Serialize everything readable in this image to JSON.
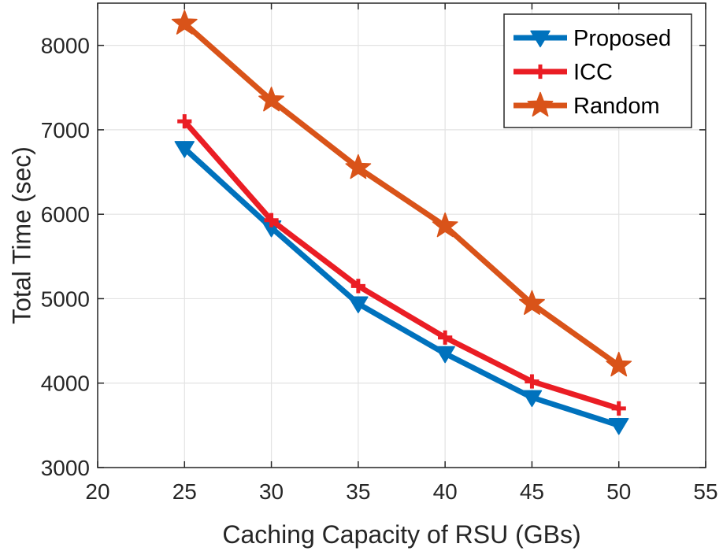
{
  "chart_data": {
    "type": "line",
    "xlabel": "Caching Capacity of RSU (GBs)",
    "ylabel": "Total Time (sec)",
    "xlim": [
      20,
      55
    ],
    "ylim": [
      3000,
      8500
    ],
    "xticks": [
      20,
      25,
      30,
      35,
      40,
      45,
      50,
      55
    ],
    "yticks": [
      3000,
      4000,
      5000,
      6000,
      7000,
      8000
    ],
    "grid": true,
    "legend_position": "top-right",
    "x": [
      25,
      30,
      35,
      40,
      45,
      50
    ],
    "series": [
      {
        "name": "Proposed",
        "values": [
          6780,
          5840,
          4940,
          4350,
          3830,
          3500
        ],
        "color": "#0072BD",
        "marker": "triangle-down"
      },
      {
        "name": " ICC",
        "values": [
          7100,
          5930,
          5150,
          4540,
          4020,
          3700
        ],
        "color": "#EA1D24",
        "marker": "plus"
      },
      {
        "name": "Random",
        "values": [
          8260,
          7350,
          6550,
          5860,
          4940,
          4210
        ],
        "color": "#D95319",
        "marker": "star"
      }
    ]
  }
}
